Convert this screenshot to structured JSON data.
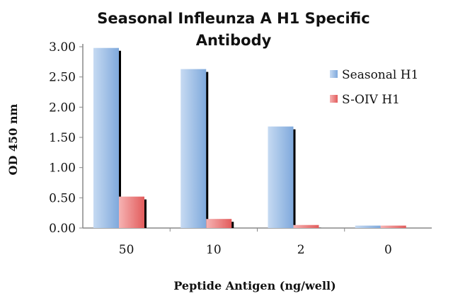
{
  "chart_data": {
    "type": "bar",
    "title_lines": [
      "Seasonal Infleunza A H1 Specific",
      "Antibody"
    ],
    "xlabel": "Peptide Antigen (ng/well)",
    "ylabel": "OD 450 nm",
    "categories": [
      "50",
      "10",
      "2",
      "0"
    ],
    "series": [
      {
        "name": "Seasonal H1",
        "values": [
          2.98,
          2.63,
          1.68,
          0.04
        ],
        "color": "#7fa9dc",
        "color_light": "#c6daf2"
      },
      {
        "name": "S-OIV H1",
        "values": [
          0.52,
          0.15,
          0.05,
          0.04
        ],
        "color": "#e25c5c",
        "color_light": "#f6b3b3"
      }
    ],
    "ylim": [
      0,
      3
    ],
    "yticks": [
      "0.00",
      "0.50",
      "1.00",
      "1.50",
      "2.00",
      "2.50",
      "3.00"
    ],
    "ytick_values": [
      0,
      0.5,
      1,
      1.5,
      2,
      2.5,
      3
    ],
    "grid": false,
    "legend_position": "right"
  }
}
